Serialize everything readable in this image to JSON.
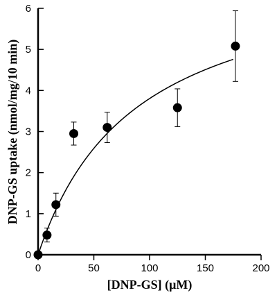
{
  "chart_data": {
    "type": "scatter",
    "title": "",
    "xlabel": "[DNP-GS] (μM)",
    "ylabel": "DNP-GS uptake (nmol/mg/10 min)",
    "xlim": [
      0,
      200
    ],
    "ylim": [
      0,
      6
    ],
    "x_ticks": [
      0,
      50,
      100,
      150,
      200
    ],
    "y_ticks": [
      0,
      1,
      2,
      3,
      4,
      5,
      6
    ],
    "grid": false,
    "legend": "none",
    "points": [
      {
        "x": 0,
        "y": 0,
        "err": 0
      },
      {
        "x": 8,
        "y": 0.48,
        "err": 0.17
      },
      {
        "x": 16,
        "y": 1.22,
        "err": 0.28
      },
      {
        "x": 32,
        "y": 2.95,
        "err": 0.28
      },
      {
        "x": 62,
        "y": 3.1,
        "err": 0.37
      },
      {
        "x": 125,
        "y": 3.58,
        "err": 0.46
      },
      {
        "x": 177,
        "y": 5.08,
        "err": 0.86
      }
    ],
    "fit_curve": {
      "model": "michaelis-menten",
      "vmax": 7.15,
      "km": 88,
      "x_range": [
        0,
        175
      ]
    },
    "colors": {
      "marker": "#000000",
      "line": "#000000"
    }
  }
}
